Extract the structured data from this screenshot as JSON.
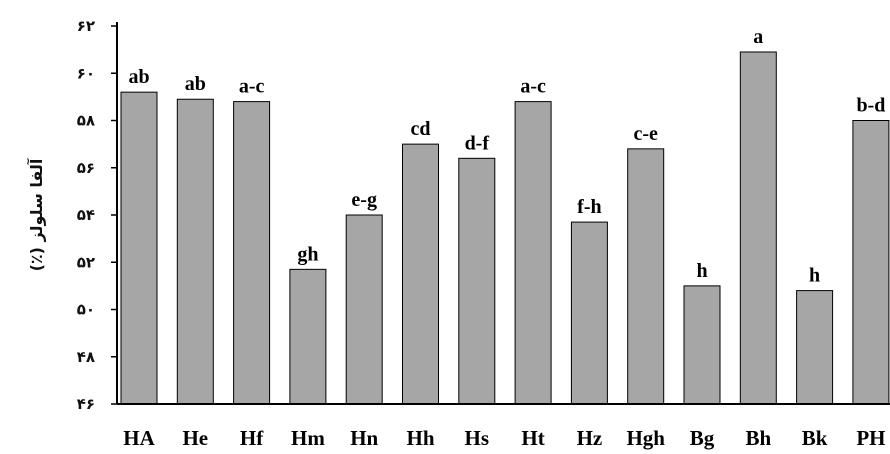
{
  "chart_data": {
    "type": "bar",
    "title": "",
    "xlabel": "",
    "ylabel": "آلفا سلولز (٪)",
    "ylim": [
      46,
      62
    ],
    "ytick_values": [
      46,
      48,
      50,
      52,
      54,
      56,
      58,
      60,
      62
    ],
    "ytick_labels": [
      "۴۶",
      "۴۸",
      "۵۰",
      "۵۲",
      "۵۴",
      "۵۶",
      "۵۸",
      "۶۰",
      "۶۲"
    ],
    "categories": [
      "HA",
      "He",
      "Hf",
      "Hm",
      "Hn",
      "Hh",
      "Hs",
      "Ht",
      "Hz",
      "Hgh",
      "Bg",
      "Bh",
      "Bk",
      "PH"
    ],
    "values": [
      59.2,
      58.9,
      58.8,
      51.7,
      54.0,
      57.0,
      56.4,
      58.8,
      53.7,
      56.8,
      51.0,
      60.9,
      50.8,
      58.0
    ],
    "data_labels": [
      "ab",
      "ab",
      "a-c",
      "gh",
      "e-g",
      "cd",
      "d-f",
      "a-c",
      "f-h",
      "c-e",
      "h",
      "a",
      "h",
      "b-d"
    ],
    "grid": false,
    "legend": "none",
    "colors": {
      "bar_fill": "#a6a6a6",
      "bar_stroke": "#000000",
      "axis": "#000000"
    }
  }
}
